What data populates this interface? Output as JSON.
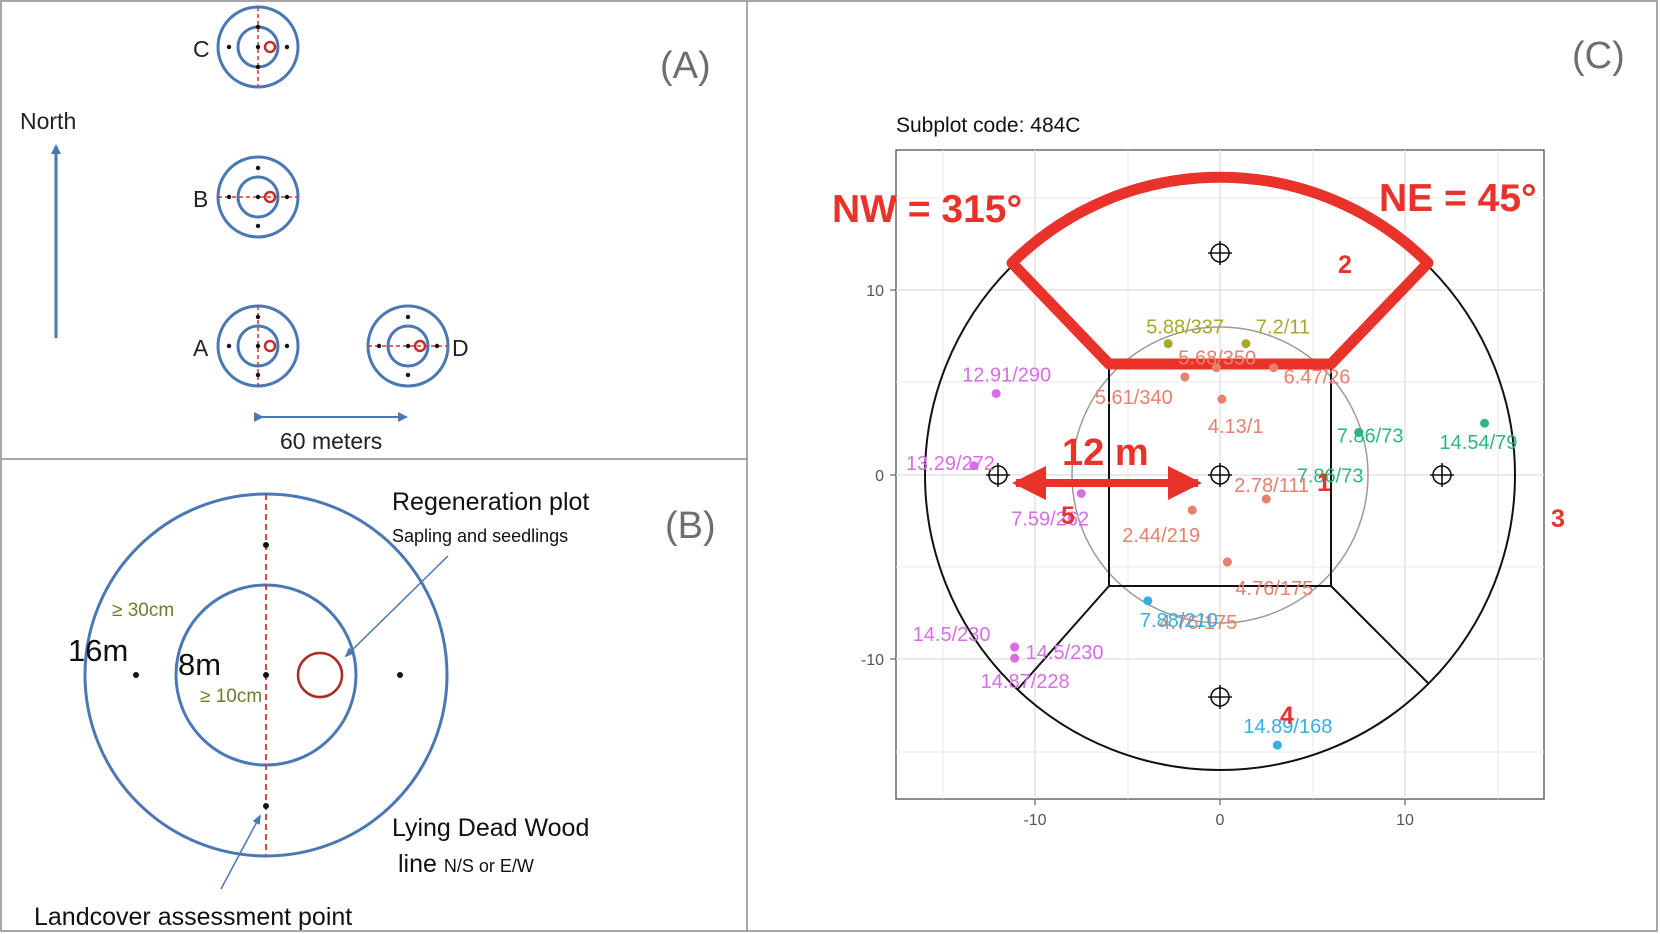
{
  "panel_a": {
    "letter": "(A)",
    "north_label": "North",
    "scale_label": "60 meters",
    "plot_labels": {
      "c": "C",
      "b": "B",
      "a": "A",
      "d": "D"
    }
  },
  "panel_b": {
    "letter": "(B)",
    "outer_radius_label": "16m",
    "inner_radius_label": "8m",
    "outer_dbh_label": "≥ 30cm",
    "inner_dbh_label": "≥ 10cm",
    "regen_title": "Regeneration plot",
    "regen_subtitle": "Sapling and seedlings",
    "deadwood_line1": "Lying Dead Wood",
    "deadwood_line2": "line",
    "deadwood_line2_small": "N/S or E/W",
    "landcover_label": "Landcover assessment point"
  },
  "panel_c": {
    "letter": "(C)",
    "subplot_code": "Subplot code: 484C",
    "nw_label": "NW = 315°",
    "ne_label": "NE = 45°",
    "distance_label": "12 m",
    "sector_numbers": [
      "1",
      "2",
      "3",
      "4",
      "5"
    ],
    "colors": {
      "red": "#e8322a",
      "salmon": "#e8806e",
      "olive": "#a9a82a",
      "green": "#2fb67c",
      "blue": "#35aee8",
      "violet": "#d76ee6"
    },
    "points": [
      {
        "label": "5.88/337",
        "x": -2.8,
        "y": 7.1,
        "color": "olive"
      },
      {
        "label": "7.2/11",
        "x": 1.4,
        "y": 7.1,
        "color": "olive"
      },
      {
        "label": "5.68/350",
        "x": -0.2,
        "y": 5.8,
        "color": "salmon"
      },
      {
        "label": "6.47/26",
        "x": 2.9,
        "y": 5.8,
        "color": "salmon"
      },
      {
        "label": "5.61/340",
        "x": -1.9,
        "y": 5.3,
        "color": "salmon"
      },
      {
        "label": "4.13/1",
        "x": 0.1,
        "y": 4.1,
        "color": "salmon"
      },
      {
        "label": "12.91/290",
        "x": -12.1,
        "y": 4.4,
        "color": "violet"
      },
      {
        "label": "13.29/272",
        "x": -13.3,
        "y": 0.5,
        "color": "violet"
      },
      {
        "label": "7.86/73",
        "x": 7.5,
        "y": 2.3,
        "color": "green"
      },
      {
        "label": "7.86/73",
        "x": 7.5,
        "y": 2.3,
        "color": "green"
      },
      {
        "label": "14.54/79",
        "x": 14.3,
        "y": 2.8,
        "color": "green"
      },
      {
        "label": "2.78/111",
        "x": 2.5,
        "y": -1.3,
        "color": "salmon"
      },
      {
        "label": "7.59/262",
        "x": -7.5,
        "y": -1.0,
        "color": "violet"
      },
      {
        "label": "2.44/219",
        "x": -1.5,
        "y": -1.9,
        "color": "salmon"
      },
      {
        "label": "4.76/175",
        "x": 0.4,
        "y": -4.7,
        "color": "salmon"
      },
      {
        "label": "4.76/175",
        "x": 0.4,
        "y": -4.7,
        "color": "salmon"
      },
      {
        "label": "7.88/210",
        "x": -3.9,
        "y": -6.8,
        "color": "blue"
      },
      {
        "label": "14.5/230",
        "x": -11.1,
        "y": -9.3,
        "color": "violet"
      },
      {
        "label": "14.5/230",
        "x": -11.1,
        "y": -9.3,
        "color": "violet"
      },
      {
        "label": "14.87/228",
        "x": -11.1,
        "y": -9.9,
        "color": "violet"
      },
      {
        "label": "14.89/168",
        "x": 3.1,
        "y": -14.6,
        "color": "blue"
      }
    ],
    "axis": {
      "x_ticks": [
        "-10",
        "0",
        "10"
      ],
      "y_ticks": [
        "10",
        "0",
        "-10"
      ],
      "xlim": [
        -17.5,
        17.5
      ],
      "ylim": [
        -17.5,
        17.5
      ]
    }
  }
}
